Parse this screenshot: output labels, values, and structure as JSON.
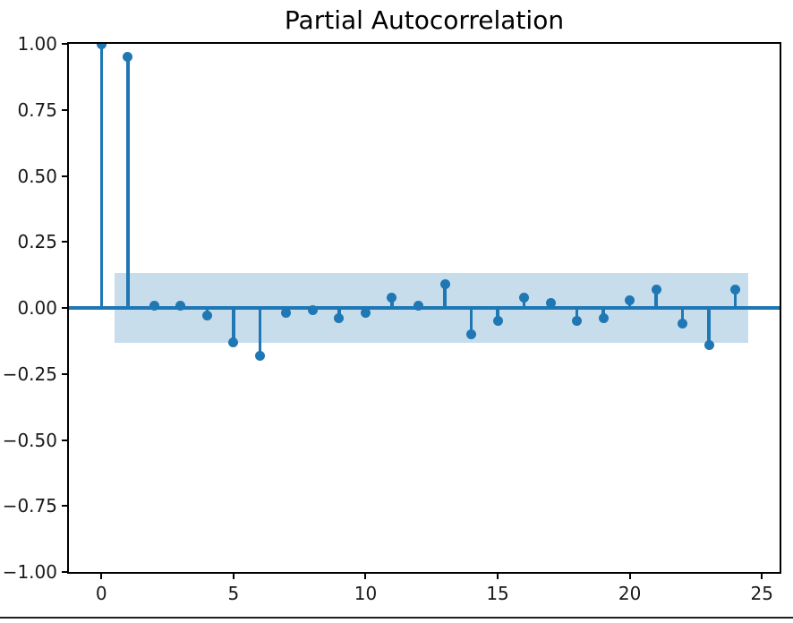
{
  "chart_data": {
    "type": "stem",
    "title": "Partial Autocorrelation",
    "xlabel": "",
    "ylabel": "",
    "x": [
      0,
      1,
      2,
      3,
      4,
      5,
      6,
      7,
      8,
      9,
      10,
      11,
      12,
      13,
      14,
      15,
      16,
      17,
      18,
      19,
      20,
      21,
      22,
      23,
      24
    ],
    "values": [
      1.0,
      0.95,
      0.01,
      0.01,
      -0.03,
      -0.13,
      -0.18,
      -0.02,
      -0.01,
      -0.04,
      -0.02,
      0.04,
      0.01,
      0.09,
      -0.1,
      -0.05,
      0.04,
      0.02,
      -0.05,
      -0.04,
      0.03,
      0.07,
      -0.06,
      -0.14,
      0.07
    ],
    "confidence_band": {
      "upper": 0.133,
      "lower": -0.133,
      "x_start": 0.5,
      "x_end": 24.5
    },
    "xlim": [
      -1.23,
      25.67
    ],
    "ylim": [
      -1.0,
      1.0
    ],
    "x_ticks": {
      "values": [
        0,
        5,
        10,
        15,
        20,
        25
      ],
      "labels": [
        "0",
        "5",
        "10",
        "15",
        "20",
        "25"
      ]
    },
    "y_ticks": {
      "values": [
        1.0,
        0.75,
        0.5,
        0.25,
        0.0,
        -0.25,
        -0.5,
        -0.75,
        -1.0
      ],
      "labels": [
        "1.00",
        "0.75",
        "0.50",
        "0.25",
        "0.00",
        "−0.25",
        "−0.50",
        "−0.75",
        "−1.00"
      ]
    },
    "grid": false,
    "legend": false,
    "colors": {
      "line": "#1f77b4",
      "marker": "#1f77b4",
      "band_fill": "rgba(31,119,180,0.25)",
      "axis": "#000000"
    }
  }
}
